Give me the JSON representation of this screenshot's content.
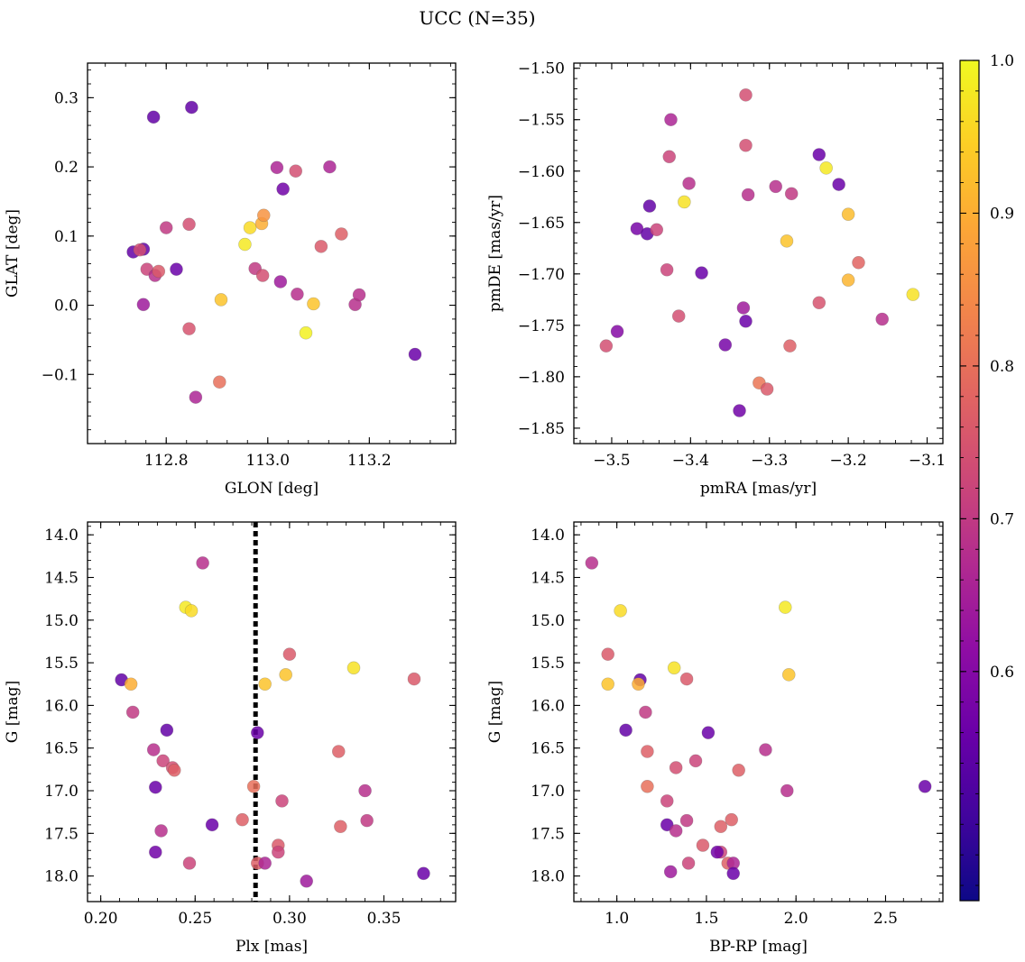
{
  "figure": {
    "title": "UCC (N=35)"
  },
  "colorbar": {
    "ticks": [
      "0.6",
      "0.7",
      "0.8",
      "0.9",
      "1.0"
    ],
    "tick_values": [
      0.6,
      0.7,
      0.8,
      0.9,
      1.0
    ],
    "range": [
      0.52,
      1.0
    ],
    "colormap": "plasma",
    "stops": [
      "#0d0887",
      "#41049d",
      "#6a00a8",
      "#8f0da4",
      "#b12a90",
      "#cc4778",
      "#e16462",
      "#f2844b",
      "#fca636",
      "#fcce25",
      "#f0f921"
    ]
  },
  "chart_data": [
    {
      "type": "scatter",
      "xlabel": "GLON [deg]",
      "ylabel": "GLAT [deg]",
      "xlim": [
        112.645,
        113.37
      ],
      "ylim": [
        -0.2,
        0.35
      ],
      "xticks": [
        "112.8",
        "113.0",
        "113.2"
      ],
      "xtick_values": [
        112.8,
        113.0,
        113.2
      ],
      "yticks": [
        "−0.1",
        "0.0",
        "0.1",
        "0.2",
        "0.3"
      ],
      "ytick_values": [
        -0.1,
        0.0,
        0.1,
        0.2,
        0.3
      ],
      "points": [
        {
          "x": 112.775,
          "y": 0.272,
          "c": 0.55
        },
        {
          "x": 112.85,
          "y": 0.286,
          "c": 0.55
        },
        {
          "x": 112.735,
          "y": 0.077,
          "c": 0.55
        },
        {
          "x": 112.755,
          "y": 0.081,
          "c": 0.55
        },
        {
          "x": 112.748,
          "y": 0.08,
          "c": 0.74
        },
        {
          "x": 112.762,
          "y": 0.052,
          "c": 0.72
        },
        {
          "x": 112.778,
          "y": 0.043,
          "c": 0.68
        },
        {
          "x": 112.785,
          "y": 0.049,
          "c": 0.76
        },
        {
          "x": 112.8,
          "y": 0.112,
          "c": 0.7
        },
        {
          "x": 112.82,
          "y": 0.052,
          "c": 0.56
        },
        {
          "x": 112.845,
          "y": 0.117,
          "c": 0.74
        },
        {
          "x": 112.845,
          "y": -0.034,
          "c": 0.75
        },
        {
          "x": 112.755,
          "y": 0.001,
          "c": 0.64
        },
        {
          "x": 112.858,
          "y": -0.133,
          "c": 0.66
        },
        {
          "x": 112.908,
          "y": 0.008,
          "c": 0.93
        },
        {
          "x": 112.905,
          "y": -0.111,
          "c": 0.8
        },
        {
          "x": 112.955,
          "y": 0.088,
          "c": 0.98
        },
        {
          "x": 112.965,
          "y": 0.112,
          "c": 0.96
        },
        {
          "x": 112.975,
          "y": 0.053,
          "c": 0.7
        },
        {
          "x": 112.988,
          "y": 0.118,
          "c": 0.9
        },
        {
          "x": 112.992,
          "y": 0.13,
          "c": 0.86
        },
        {
          "x": 112.99,
          "y": 0.043,
          "c": 0.74
        },
        {
          "x": 113.018,
          "y": 0.199,
          "c": 0.66
        },
        {
          "x": 113.03,
          "y": 0.168,
          "c": 0.57
        },
        {
          "x": 113.025,
          "y": 0.034,
          "c": 0.64
        },
        {
          "x": 113.055,
          "y": 0.194,
          "c": 0.74
        },
        {
          "x": 113.058,
          "y": 0.016,
          "c": 0.68
        },
        {
          "x": 113.075,
          "y": -0.04,
          "c": 0.99
        },
        {
          "x": 113.09,
          "y": 0.002,
          "c": 0.93
        },
        {
          "x": 113.105,
          "y": 0.085,
          "c": 0.76
        },
        {
          "x": 113.122,
          "y": 0.2,
          "c": 0.66
        },
        {
          "x": 113.145,
          "y": 0.103,
          "c": 0.77
        },
        {
          "x": 113.172,
          "y": 0.001,
          "c": 0.68
        },
        {
          "x": 113.18,
          "y": 0.015,
          "c": 0.68
        },
        {
          "x": 113.29,
          "y": -0.071,
          "c": 0.56
        }
      ]
    },
    {
      "type": "scatter",
      "xlabel": "pmRA [mas/yr]",
      "ylabel": "pmDE [mas/yr]",
      "xlim": [
        -3.548,
        -3.08
      ],
      "ylim": [
        -1.865,
        -1.495
      ],
      "xticks": [
        "−3.5",
        "−3.4",
        "−3.3",
        "−3.2",
        "−3.1"
      ],
      "xtick_values": [
        -3.5,
        -3.4,
        -3.3,
        -3.2,
        -3.1
      ],
      "yticks": [
        "−1.50",
        "−1.55",
        "−1.60",
        "−1.65",
        "−1.70",
        "−1.75",
        "−1.80",
        "−1.85"
      ],
      "ytick_values": [
        -1.5,
        -1.55,
        -1.6,
        -1.65,
        -1.7,
        -1.75,
        -1.8,
        -1.85
      ],
      "points": [
        {
          "x": -3.33,
          "y": -1.526,
          "c": 0.74
        },
        {
          "x": -3.425,
          "y": -1.55,
          "c": 0.66
        },
        {
          "x": -3.33,
          "y": -1.575,
          "c": 0.74
        },
        {
          "x": -3.427,
          "y": -1.586,
          "c": 0.72
        },
        {
          "x": -3.237,
          "y": -1.584,
          "c": 0.56
        },
        {
          "x": -3.228,
          "y": -1.597,
          "c": 0.98
        },
        {
          "x": -3.402,
          "y": -1.612,
          "c": 0.68
        },
        {
          "x": -3.212,
          "y": -1.613,
          "c": 0.56
        },
        {
          "x": -3.292,
          "y": -1.615,
          "c": 0.68
        },
        {
          "x": -3.327,
          "y": -1.623,
          "c": 0.68
        },
        {
          "x": -3.272,
          "y": -1.622,
          "c": 0.7
        },
        {
          "x": -3.452,
          "y": -1.634,
          "c": 0.55
        },
        {
          "x": -3.408,
          "y": -1.63,
          "c": 0.97
        },
        {
          "x": -3.2,
          "y": -1.642,
          "c": 0.92
        },
        {
          "x": -3.468,
          "y": -1.656,
          "c": 0.58
        },
        {
          "x": -3.455,
          "y": -1.661,
          "c": 0.55
        },
        {
          "x": -3.443,
          "y": -1.657,
          "c": 0.72
        },
        {
          "x": -3.278,
          "y": -1.668,
          "c": 0.93
        },
        {
          "x": -3.187,
          "y": -1.689,
          "c": 0.78
        },
        {
          "x": -3.43,
          "y": -1.696,
          "c": 0.72
        },
        {
          "x": -3.386,
          "y": -1.699,
          "c": 0.56
        },
        {
          "x": -3.2,
          "y": -1.706,
          "c": 0.91
        },
        {
          "x": -3.118,
          "y": -1.72,
          "c": 0.97
        },
        {
          "x": -3.237,
          "y": -1.728,
          "c": 0.75
        },
        {
          "x": -3.333,
          "y": -1.733,
          "c": 0.64
        },
        {
          "x": -3.415,
          "y": -1.741,
          "c": 0.74
        },
        {
          "x": -3.157,
          "y": -1.744,
          "c": 0.68
        },
        {
          "x": -3.33,
          "y": -1.746,
          "c": 0.56
        },
        {
          "x": -3.493,
          "y": -1.756,
          "c": 0.6
        },
        {
          "x": -3.507,
          "y": -1.77,
          "c": 0.74
        },
        {
          "x": -3.356,
          "y": -1.769,
          "c": 0.58
        },
        {
          "x": -3.274,
          "y": -1.77,
          "c": 0.77
        },
        {
          "x": -3.313,
          "y": -1.806,
          "c": 0.81
        },
        {
          "x": -3.303,
          "y": -1.812,
          "c": 0.76
        },
        {
          "x": -3.338,
          "y": -1.833,
          "c": 0.57
        }
      ]
    },
    {
      "type": "scatter",
      "xlabel": "Plx [mas]",
      "ylabel": "G [mag]",
      "xlim": [
        0.193,
        0.388
      ],
      "ylim": [
        18.3,
        13.85
      ],
      "xticks": [
        "0.20",
        "0.25",
        "0.30",
        "0.35"
      ],
      "xtick_values": [
        0.2,
        0.25,
        0.3,
        0.35
      ],
      "yticks": [
        "14.0",
        "14.5",
        "15.0",
        "15.5",
        "16.0",
        "16.5",
        "17.0",
        "17.5",
        "18.0"
      ],
      "ytick_values": [
        14.0,
        14.5,
        15.0,
        15.5,
        16.0,
        16.5,
        17.0,
        17.5,
        18.0
      ],
      "vline": 0.282,
      "points": [
        {
          "x": 0.254,
          "y": 14.33,
          "c": 0.68
        },
        {
          "x": 0.245,
          "y": 14.85,
          "c": 0.98
        },
        {
          "x": 0.248,
          "y": 14.89,
          "c": 0.96
        },
        {
          "x": 0.3,
          "y": 15.4,
          "c": 0.76
        },
        {
          "x": 0.334,
          "y": 15.56,
          "c": 0.97
        },
        {
          "x": 0.298,
          "y": 15.64,
          "c": 0.93
        },
        {
          "x": 0.366,
          "y": 15.69,
          "c": 0.76
        },
        {
          "x": 0.211,
          "y": 15.7,
          "c": 0.55
        },
        {
          "x": 0.216,
          "y": 15.75,
          "c": 0.9
        },
        {
          "x": 0.287,
          "y": 15.75,
          "c": 0.93
        },
        {
          "x": 0.217,
          "y": 16.08,
          "c": 0.7
        },
        {
          "x": 0.235,
          "y": 16.29,
          "c": 0.55
        },
        {
          "x": 0.283,
          "y": 16.32,
          "c": 0.56
        },
        {
          "x": 0.228,
          "y": 16.52,
          "c": 0.68
        },
        {
          "x": 0.326,
          "y": 16.54,
          "c": 0.77
        },
        {
          "x": 0.233,
          "y": 16.65,
          "c": 0.72
        },
        {
          "x": 0.238,
          "y": 16.73,
          "c": 0.74
        },
        {
          "x": 0.239,
          "y": 16.76,
          "c": 0.77
        },
        {
          "x": 0.281,
          "y": 16.95,
          "c": 0.8
        },
        {
          "x": 0.229,
          "y": 16.96,
          "c": 0.56
        },
        {
          "x": 0.34,
          "y": 17.0,
          "c": 0.68
        },
        {
          "x": 0.296,
          "y": 17.12,
          "c": 0.72
        },
        {
          "x": 0.341,
          "y": 17.35,
          "c": 0.7
        },
        {
          "x": 0.275,
          "y": 17.34,
          "c": 0.77
        },
        {
          "x": 0.259,
          "y": 17.4,
          "c": 0.56
        },
        {
          "x": 0.327,
          "y": 17.42,
          "c": 0.77
        },
        {
          "x": 0.232,
          "y": 17.47,
          "c": 0.68
        },
        {
          "x": 0.294,
          "y": 17.64,
          "c": 0.76
        },
        {
          "x": 0.294,
          "y": 17.72,
          "c": 0.72
        },
        {
          "x": 0.229,
          "y": 17.72,
          "c": 0.57
        },
        {
          "x": 0.247,
          "y": 17.85,
          "c": 0.72
        },
        {
          "x": 0.283,
          "y": 17.85,
          "c": 0.77
        },
        {
          "x": 0.287,
          "y": 17.85,
          "c": 0.66
        },
        {
          "x": 0.371,
          "y": 17.97,
          "c": 0.56
        },
        {
          "x": 0.309,
          "y": 18.06,
          "c": 0.64
        }
      ]
    },
    {
      "type": "scatter",
      "xlabel": "BP-RP [mag]",
      "ylabel": "G [mag]",
      "xlim": [
        0.76,
        2.82
      ],
      "ylim": [
        18.3,
        13.85
      ],
      "xticks": [
        "1.0",
        "1.5",
        "2.0",
        "2.5"
      ],
      "xtick_values": [
        1.0,
        1.5,
        2.0,
        2.5
      ],
      "yticks": [
        "14.0",
        "14.5",
        "15.0",
        "15.5",
        "16.0",
        "16.5",
        "17.0",
        "17.5",
        "18.0"
      ],
      "ytick_values": [
        14.0,
        14.5,
        15.0,
        15.5,
        16.0,
        16.5,
        17.0,
        17.5,
        18.0
      ],
      "points": [
        {
          "x": 0.86,
          "y": 14.33,
          "c": 0.68
        },
        {
          "x": 1.94,
          "y": 14.85,
          "c": 0.98
        },
        {
          "x": 1.02,
          "y": 14.89,
          "c": 0.96
        },
        {
          "x": 0.95,
          "y": 15.4,
          "c": 0.76
        },
        {
          "x": 1.32,
          "y": 15.56,
          "c": 0.97
        },
        {
          "x": 1.96,
          "y": 15.64,
          "c": 0.93
        },
        {
          "x": 1.39,
          "y": 15.69,
          "c": 0.76
        },
        {
          "x": 1.13,
          "y": 15.7,
          "c": 0.55
        },
        {
          "x": 1.12,
          "y": 15.75,
          "c": 0.9
        },
        {
          "x": 0.95,
          "y": 15.75,
          "c": 0.93
        },
        {
          "x": 1.16,
          "y": 16.08,
          "c": 0.7
        },
        {
          "x": 1.05,
          "y": 16.29,
          "c": 0.55
        },
        {
          "x": 1.51,
          "y": 16.32,
          "c": 0.56
        },
        {
          "x": 1.83,
          "y": 16.52,
          "c": 0.68
        },
        {
          "x": 1.17,
          "y": 16.54,
          "c": 0.77
        },
        {
          "x": 1.44,
          "y": 16.65,
          "c": 0.72
        },
        {
          "x": 1.33,
          "y": 16.73,
          "c": 0.74
        },
        {
          "x": 1.68,
          "y": 16.76,
          "c": 0.77
        },
        {
          "x": 1.17,
          "y": 16.95,
          "c": 0.8
        },
        {
          "x": 2.72,
          "y": 16.95,
          "c": 0.56
        },
        {
          "x": 1.95,
          "y": 17.0,
          "c": 0.68
        },
        {
          "x": 1.28,
          "y": 17.12,
          "c": 0.72
        },
        {
          "x": 1.39,
          "y": 17.35,
          "c": 0.7
        },
        {
          "x": 1.64,
          "y": 17.34,
          "c": 0.77
        },
        {
          "x": 1.28,
          "y": 17.4,
          "c": 0.56
        },
        {
          "x": 1.58,
          "y": 17.42,
          "c": 0.77
        },
        {
          "x": 1.33,
          "y": 17.47,
          "c": 0.68
        },
        {
          "x": 1.48,
          "y": 17.64,
          "c": 0.76
        },
        {
          "x": 1.58,
          "y": 17.72,
          "c": 0.72
        },
        {
          "x": 1.56,
          "y": 17.72,
          "c": 0.57
        },
        {
          "x": 1.4,
          "y": 17.85,
          "c": 0.72
        },
        {
          "x": 1.62,
          "y": 17.85,
          "c": 0.77
        },
        {
          "x": 1.65,
          "y": 17.85,
          "c": 0.66
        },
        {
          "x": 1.65,
          "y": 17.97,
          "c": 0.56
        },
        {
          "x": 1.3,
          "y": 17.95,
          "c": 0.64
        }
      ]
    }
  ]
}
